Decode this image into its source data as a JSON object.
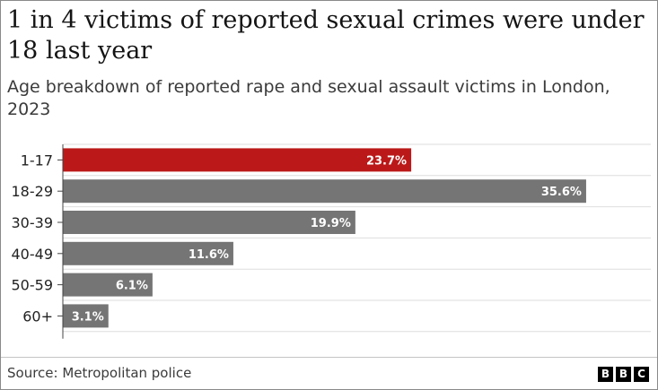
{
  "headline": {
    "title": "1 in 4 victims of reported sexual crimes were under 18 last year",
    "subtitle": "Age breakdown of reported rape and sexual assault victims in London, 2023"
  },
  "footer": {
    "source": "Source: Metropolitan police",
    "logo_letters": [
      "B",
      "B",
      "C"
    ]
  },
  "colors": {
    "highlight": "#bb1919",
    "default": "#757575",
    "grid": "#dedede",
    "axis": "#444444",
    "label_text": "#ffffff",
    "tick_text": "#222222"
  },
  "chart_data": {
    "type": "bar",
    "orientation": "horizontal",
    "title": "1 in 4 victims of reported sexual crimes were under 18 last year",
    "subtitle": "Age breakdown of reported rape and sexual assault victims in London, 2023",
    "categories": [
      "1-17",
      "18-29",
      "30-39",
      "40-49",
      "50-59",
      "60+"
    ],
    "values": [
      23.7,
      35.6,
      19.9,
      11.6,
      6.1,
      3.1
    ],
    "data_labels": [
      "23.7%",
      "35.6%",
      "19.9%",
      "11.6%",
      "6.1%",
      "3.1%"
    ],
    "highlight_category": "1-17",
    "xlim": [
      0,
      40
    ],
    "grid": true,
    "legend": "none",
    "xlabel": "",
    "ylabel": ""
  }
}
